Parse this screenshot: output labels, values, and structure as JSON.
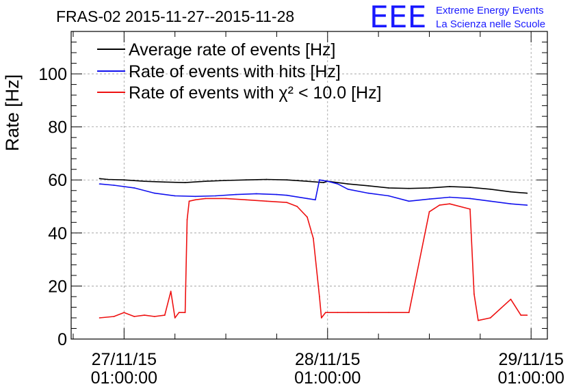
{
  "header": {
    "title": "FRAS-02 2015-11-27--2015-11-28",
    "logo": {
      "mark": "EEE",
      "line1": "Extreme Energy Events",
      "line2": "La Scienza nelle Scuole",
      "color": "#1a1aff"
    }
  },
  "chart_data": {
    "type": "line",
    "ylabel": "Rate [Hz]",
    "xlabel": "",
    "ylim": [
      0,
      116
    ],
    "xlim": [
      -0.26,
      2.08
    ],
    "yticks": [
      0,
      20,
      40,
      60,
      80,
      100
    ],
    "xticks": [
      {
        "value": 0,
        "label_date": "27/11/15",
        "label_time": "01:00:00"
      },
      {
        "value": 1,
        "label_date": "28/11/15",
        "label_time": "01:00:00"
      },
      {
        "value": 2,
        "label_date": "29/11/15",
        "label_time": "01:00:00"
      }
    ],
    "grid": true,
    "legend_position": "top-left",
    "series": [
      {
        "name": "Average rate of events [Hz]",
        "color": "#000000",
        "x": [
          -0.12,
          -0.08,
          0.0,
          0.1,
          0.2,
          0.3,
          0.4,
          0.5,
          0.6,
          0.7,
          0.8,
          0.9,
          0.98,
          1.0,
          1.1,
          1.2,
          1.3,
          1.4,
          1.5,
          1.6,
          1.7,
          1.8,
          1.9,
          1.98
        ],
        "values": [
          60.5,
          60.2,
          60.0,
          59.5,
          59.2,
          59.0,
          59.5,
          59.8,
          60.0,
          60.2,
          60.0,
          59.5,
          59.0,
          59.5,
          58.5,
          57.8,
          57.0,
          56.8,
          57.0,
          57.5,
          57.2,
          56.5,
          55.5,
          55.0
        ]
      },
      {
        "name": "Rate of events with hits [Hz]",
        "color": "#1010ee",
        "x": [
          -0.12,
          -0.05,
          0.05,
          0.15,
          0.25,
          0.35,
          0.45,
          0.55,
          0.65,
          0.75,
          0.8,
          0.9,
          0.94,
          0.96,
          1.0,
          1.05,
          1.1,
          1.2,
          1.3,
          1.4,
          1.5,
          1.6,
          1.7,
          1.8,
          1.9,
          1.98
        ],
        "values": [
          58.5,
          58.0,
          57.0,
          55.0,
          54.0,
          53.8,
          54.0,
          54.5,
          54.8,
          54.5,
          54.2,
          53.0,
          52.5,
          60.0,
          59.5,
          58.5,
          56.5,
          55.0,
          54.0,
          52.0,
          52.8,
          53.5,
          53.0,
          52.0,
          51.0,
          50.5
        ]
      },
      {
        "name": "Rate of events with χ² < 10.0 [Hz]",
        "color": "#ee1010",
        "x": [
          -0.12,
          -0.05,
          0.0,
          0.05,
          0.1,
          0.15,
          0.2,
          0.23,
          0.25,
          0.27,
          0.3,
          0.31,
          0.32,
          0.35,
          0.4,
          0.5,
          0.6,
          0.7,
          0.8,
          0.85,
          0.9,
          0.93,
          0.96,
          0.97,
          0.99,
          1.0,
          1.05,
          1.1,
          1.2,
          1.3,
          1.4,
          1.5,
          1.55,
          1.6,
          1.7,
          1.72,
          1.74,
          1.8,
          1.9,
          1.95,
          1.98
        ],
        "values": [
          8,
          8.5,
          10,
          8.5,
          9,
          8.5,
          9,
          18,
          8,
          10,
          10,
          45,
          52,
          52.5,
          53,
          53,
          52.5,
          52,
          51.5,
          50,
          46,
          38,
          16,
          8,
          10,
          10,
          10,
          10,
          10,
          10,
          10,
          48,
          50.5,
          51,
          49,
          17,
          7,
          8,
          15,
          9,
          9
        ]
      }
    ]
  }
}
